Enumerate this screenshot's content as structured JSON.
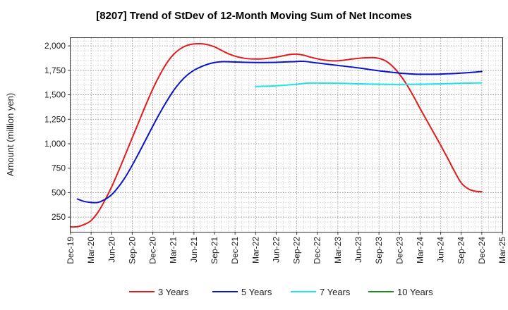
{
  "chart_data": {
    "type": "line",
    "title": "[8207]  Trend of StDev of 12-Month Moving Sum of Net Incomes",
    "ylabel": "Amount (million yen)",
    "xlabel": "",
    "ylim": [
      100,
      2080
    ],
    "yticks": [
      250,
      500,
      750,
      "1,000",
      "1,250",
      "1,500",
      "1,750",
      "2,000"
    ],
    "x_ticks": [
      "Dec-19",
      "Mar-20",
      "Jun-20",
      "Sep-20",
      "Dec-20",
      "Mar-21",
      "Jun-21",
      "Sep-21",
      "Dec-21",
      "Mar-22",
      "Jun-22",
      "Sep-22",
      "Dec-22",
      "Mar-23",
      "Jun-23",
      "Sep-23",
      "Dec-23",
      "Mar-24",
      "Jun-24",
      "Sep-24",
      "Dec-24",
      "Mar-25"
    ],
    "grid": true,
    "legend_position": "bottom",
    "series": [
      {
        "name": "3 Years",
        "color": "#e41a1c",
        "points": [
          [
            "Dec-19",
            150
          ],
          [
            "Jan-20",
            152
          ],
          [
            "Feb-20",
            175
          ],
          [
            "Mar-20",
            215
          ],
          [
            "Apr-20",
            300
          ],
          [
            "May-20",
            420
          ],
          [
            "Jun-20",
            560
          ],
          [
            "Jul-20",
            720
          ],
          [
            "Aug-20",
            890
          ],
          [
            "Sep-20",
            1060
          ],
          [
            "Oct-20",
            1230
          ],
          [
            "Nov-20",
            1400
          ],
          [
            "Dec-20",
            1560
          ],
          [
            "Jan-21",
            1700
          ],
          [
            "Feb-21",
            1820
          ],
          [
            "Mar-21",
            1910
          ],
          [
            "Apr-21",
            1970
          ],
          [
            "May-21",
            2005
          ],
          [
            "Jun-21",
            2020
          ],
          [
            "Jul-21",
            2022
          ],
          [
            "Aug-21",
            2012
          ],
          [
            "Sep-21",
            1990
          ],
          [
            "Oct-21",
            1955
          ],
          [
            "Nov-21",
            1920
          ],
          [
            "Dec-21",
            1895
          ],
          [
            "Jan-22",
            1878
          ],
          [
            "Feb-22",
            1868
          ],
          [
            "Mar-22",
            1866
          ],
          [
            "Apr-22",
            1868
          ],
          [
            "May-22",
            1875
          ],
          [
            "Jun-22",
            1885
          ],
          [
            "Jul-22",
            1898
          ],
          [
            "Aug-22",
            1912
          ],
          [
            "Sep-22",
            1915
          ],
          [
            "Oct-22",
            1905
          ],
          [
            "Nov-22",
            1885
          ],
          [
            "Dec-22",
            1868
          ],
          [
            "Jan-23",
            1855
          ],
          [
            "Feb-23",
            1848
          ],
          [
            "Mar-23",
            1848
          ],
          [
            "Apr-23",
            1855
          ],
          [
            "May-23",
            1865
          ],
          [
            "Jun-23",
            1872
          ],
          [
            "Jul-23",
            1878
          ],
          [
            "Aug-23",
            1880
          ],
          [
            "Sep-23",
            1872
          ],
          [
            "Oct-23",
            1845
          ],
          [
            "Nov-23",
            1790
          ],
          [
            "Dec-23",
            1710
          ],
          [
            "Jan-24",
            1610
          ],
          [
            "Feb-24",
            1490
          ],
          [
            "Mar-24",
            1360
          ],
          [
            "Apr-24",
            1235
          ],
          [
            "May-24",
            1110
          ],
          [
            "Jun-24",
            985
          ],
          [
            "Jul-24",
            855
          ],
          [
            "Aug-24",
            720
          ],
          [
            "Sep-24",
            600
          ],
          [
            "Oct-24",
            540
          ],
          [
            "Nov-24",
            515
          ],
          [
            "Dec-24",
            510
          ]
        ]
      },
      {
        "name": "5 Years",
        "color": "#0a14c8",
        "points": [
          [
            "Jan-20",
            435
          ],
          [
            "Feb-20",
            410
          ],
          [
            "Mar-20",
            400
          ],
          [
            "Apr-20",
            400
          ],
          [
            "May-20",
            430
          ],
          [
            "Jun-20",
            480
          ],
          [
            "Jul-20",
            560
          ],
          [
            "Aug-20",
            660
          ],
          [
            "Sep-20",
            780
          ],
          [
            "Oct-20",
            910
          ],
          [
            "Nov-20",
            1045
          ],
          [
            "Dec-20",
            1180
          ],
          [
            "Jan-21",
            1310
          ],
          [
            "Feb-21",
            1430
          ],
          [
            "Mar-21",
            1540
          ],
          [
            "Apr-21",
            1630
          ],
          [
            "May-21",
            1700
          ],
          [
            "Jun-21",
            1750
          ],
          [
            "Jul-21",
            1785
          ],
          [
            "Aug-21",
            1812
          ],
          [
            "Sep-21",
            1830
          ],
          [
            "Oct-21",
            1838
          ],
          [
            "Nov-21",
            1838
          ],
          [
            "Dec-21",
            1835
          ],
          [
            "Mar-22",
            1830
          ],
          [
            "Jun-22",
            1832
          ],
          [
            "Sep-22",
            1840
          ],
          [
            "Oct-22",
            1842
          ],
          [
            "Dec-22",
            1825
          ],
          [
            "Mar-23",
            1800
          ],
          [
            "Jun-23",
            1775
          ],
          [
            "Sep-23",
            1745
          ],
          [
            "Dec-23",
            1722
          ],
          [
            "Feb-24",
            1712
          ],
          [
            "Mar-24",
            1710
          ],
          [
            "Jun-24",
            1712
          ],
          [
            "Sep-24",
            1722
          ],
          [
            "Dec-24",
            1738
          ]
        ]
      },
      {
        "name": "7 Years",
        "color": "#1ee6e6",
        "points": [
          [
            "Mar-22",
            1585
          ],
          [
            "Jun-22",
            1592
          ],
          [
            "Sep-22",
            1608
          ],
          [
            "Nov-22",
            1620
          ],
          [
            "Mar-23",
            1618
          ],
          [
            "Jun-23",
            1612
          ],
          [
            "Sep-23",
            1608
          ],
          [
            "Dec-23",
            1606
          ],
          [
            "Mar-24",
            1608
          ],
          [
            "Jun-24",
            1612
          ],
          [
            "Sep-24",
            1618
          ],
          [
            "Dec-24",
            1622
          ]
        ]
      },
      {
        "name": "10 Years",
        "color": "#1a8a1a",
        "points": []
      }
    ]
  }
}
